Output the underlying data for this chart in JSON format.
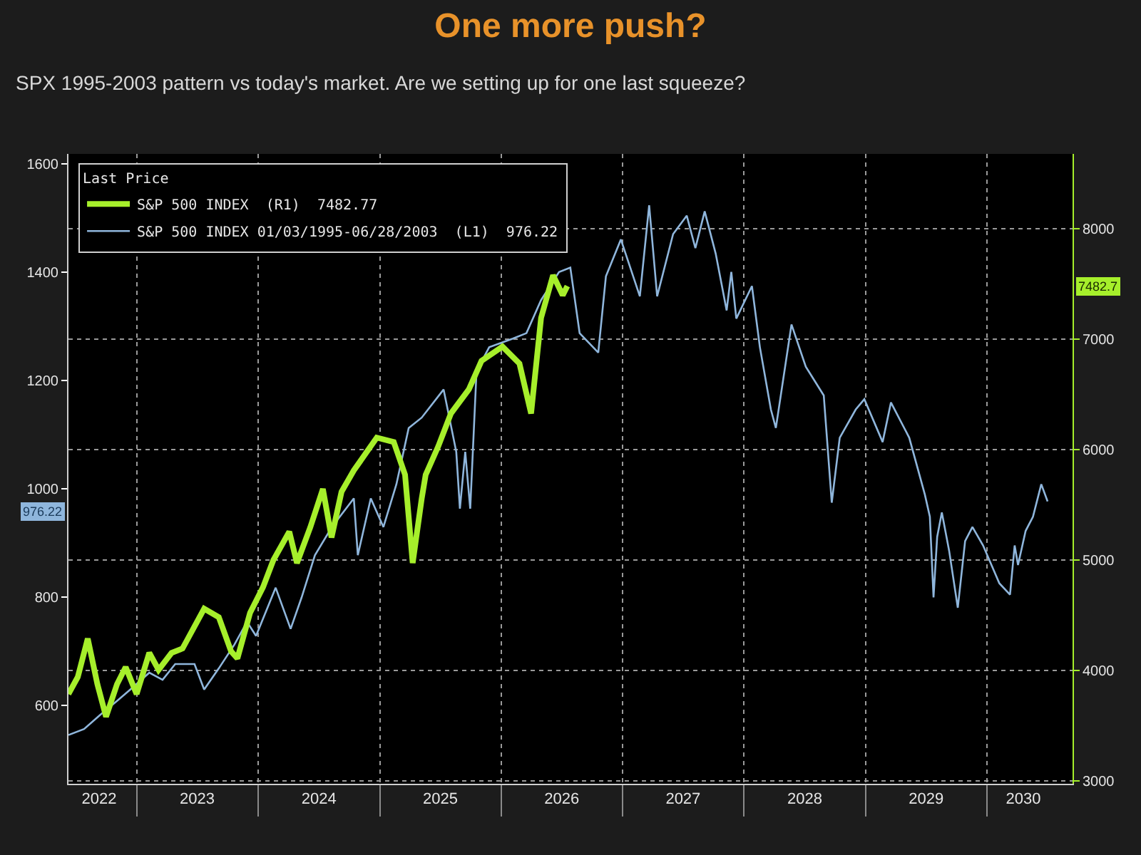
{
  "chart_data": {
    "type": "line",
    "title": "One more push?",
    "subtitle": "SPX 1995-2003 pattern vs today's market. Are we setting up for one last squeeze?",
    "legend_title": "Last Price",
    "legend": "top left",
    "grid": true,
    "marker": "none",
    "line_style": "solid",
    "xlim": [
      "2022-06-10",
      "2030-09-15"
    ],
    "xticks": [
      {
        "value": "2022-09-10",
        "label": "2022"
      },
      {
        "value": "2023-01-01",
        "label": null
      },
      {
        "value": "2023-07-02",
        "label": "2023"
      },
      {
        "value": "2024-01-01",
        "label": null
      },
      {
        "value": "2024-07-02",
        "label": "2024"
      },
      {
        "value": "2025-01-01",
        "label": null
      },
      {
        "value": "2025-07-02",
        "label": "2025"
      },
      {
        "value": "2026-01-01",
        "label": null
      },
      {
        "value": "2026-07-02",
        "label": "2026"
      },
      {
        "value": "2027-01-01",
        "label": null
      },
      {
        "value": "2027-07-02",
        "label": "2027"
      },
      {
        "value": "2028-01-01",
        "label": null
      },
      {
        "value": "2028-07-02",
        "label": "2028"
      },
      {
        "value": "2029-01-01",
        "label": null
      },
      {
        "value": "2029-07-02",
        "label": "2029"
      },
      {
        "value": "2030-01-01",
        "label": null
      },
      {
        "value": "2030-04-20",
        "label": "2030"
      }
    ],
    "ylim": [
      455,
      1618
    ],
    "yticks": [
      600,
      800,
      1000,
      1200,
      1400,
      1600
    ],
    "y2lim": [
      2975,
      8680
    ],
    "y2ticks": [
      3000,
      4000,
      5000,
      6000,
      7000,
      8000
    ],
    "annotations": [
      "976.22",
      "7482.7"
    ],
    "series": [
      {
        "name": "S&P 500 INDEX  (R1)  7482.77",
        "color": "#a6ef2b",
        "axis": "y2",
        "x": [
          "2022-06-10",
          "2022-07-08",
          "2022-08-07",
          "2022-09-05",
          "2022-10-01",
          "2022-11-03",
          "2022-11-29",
          "2023-01-01",
          "2023-02-08",
          "2023-03-08",
          "2023-04-16",
          "2023-05-19",
          "2023-07-23",
          "2023-09-05",
          "2023-10-12",
          "2023-10-31",
          "2023-12-08",
          "2024-01-16",
          "2024-02-16",
          "2024-04-04",
          "2024-04-27",
          "2024-06-06",
          "2024-07-14",
          "2024-08-09",
          "2024-09-08",
          "2024-10-15",
          "2024-12-23",
          "2025-02-12",
          "2025-03-18",
          "2025-04-10",
          "2025-05-07",
          "2025-05-19",
          "2025-06-26",
          "2025-08-03",
          "2025-09-26",
          "2025-11-03",
          "2026-01-05",
          "2026-02-25",
          "2026-04-01",
          "2026-05-01",
          "2026-06-06",
          "2026-07-05",
          "2026-07-19"
        ],
        "values": [
          3787,
          3942,
          4290,
          3877,
          3581,
          3877,
          4032,
          3787,
          4161,
          4006,
          4161,
          4200,
          4561,
          4484,
          4174,
          4110,
          4523,
          4755,
          5000,
          5258,
          4974,
          5297,
          5645,
          5206,
          5619,
          5813,
          6110,
          6071,
          5774,
          4974,
          5555,
          5774,
          6032,
          6329,
          6548,
          6806,
          6935,
          6781,
          6329,
          7194,
          7581,
          7400,
          7482.77
        ]
      },
      {
        "name": "S&P 500 INDEX 01/03/1995-06/28/2003  (L1)  976.22",
        "color": "#8fb6dc",
        "axis": "y",
        "x": [
          "2022-06-10",
          "2022-07-27",
          "2022-09-13",
          "2022-11-03",
          "2022-12-13",
          "2023-02-08",
          "2023-03-20",
          "2023-04-27",
          "2023-06-24",
          "2023-07-23",
          "2023-09-05",
          "2023-10-22",
          "2023-11-29",
          "2023-12-26",
          "2024-02-23",
          "2024-04-08",
          "2024-05-11",
          "2024-06-20",
          "2024-08-10",
          "2024-10-15",
          "2024-10-27",
          "2024-12-05",
          "2025-01-12",
          "2025-02-20",
          "2025-03-29",
          "2025-05-07",
          "2025-07-12",
          "2025-08-19",
          "2025-08-30",
          "2025-09-15",
          "2025-09-30",
          "2025-10-19",
          "2025-11-26",
          "2026-02-05",
          "2026-03-18",
          "2026-05-01",
          "2026-06-24",
          "2026-07-28",
          "2026-08-25",
          "2026-10-20",
          "2026-11-12",
          "2026-12-27",
          "2027-02-22",
          "2027-03-22",
          "2027-04-15",
          "2027-06-02",
          "2027-07-13",
          "2027-08-08",
          "2027-09-05",
          "2027-10-08",
          "2027-11-10",
          "2027-11-24",
          "2027-12-09",
          "2028-01-25",
          "2028-02-18",
          "2028-03-22",
          "2028-04-06",
          "2028-05-23",
          "2028-07-05",
          "2028-08-28",
          "2028-09-21",
          "2028-10-15",
          "2028-12-02",
          "2028-12-28",
          "2029-02-21",
          "2029-03-18",
          "2029-05-12",
          "2029-06-28",
          "2029-07-13",
          "2029-07-24",
          "2029-08-04",
          "2029-08-18",
          "2029-09-09",
          "2029-10-05",
          "2029-10-27",
          "2029-11-18",
          "2029-12-20",
          "2030-02-07",
          "2030-03-11",
          "2030-03-25",
          "2030-04-04",
          "2030-04-27",
          "2030-05-19",
          "2030-06-13",
          "2030-07-02"
        ],
        "values": [
          545,
          556,
          582,
          608,
          629,
          660,
          647,
          676,
          676,
          629,
          668,
          712,
          754,
          728,
          817,
          741,
          799,
          877,
          929,
          982,
          877,
          982,
          929,
          1008,
          1112,
          1131,
          1183,
          1068,
          963,
          1068,
          963,
          1217,
          1261,
          1277,
          1287,
          1348,
          1400,
          1408,
          1287,
          1251,
          1392,
          1460,
          1355,
          1523,
          1355,
          1470,
          1504,
          1444,
          1512,
          1434,
          1329,
          1400,
          1314,
          1374,
          1261,
          1146,
          1112,
          1303,
          1225,
          1172,
          974,
          1094,
          1146,
          1165,
          1086,
          1159,
          1094,
          989,
          948,
          799,
          911,
          956,
          885,
          780,
          903,
          929,
          895,
          825,
          804,
          895,
          859,
          922,
          948,
          1008,
          976.22
        ]
      }
    ]
  }
}
